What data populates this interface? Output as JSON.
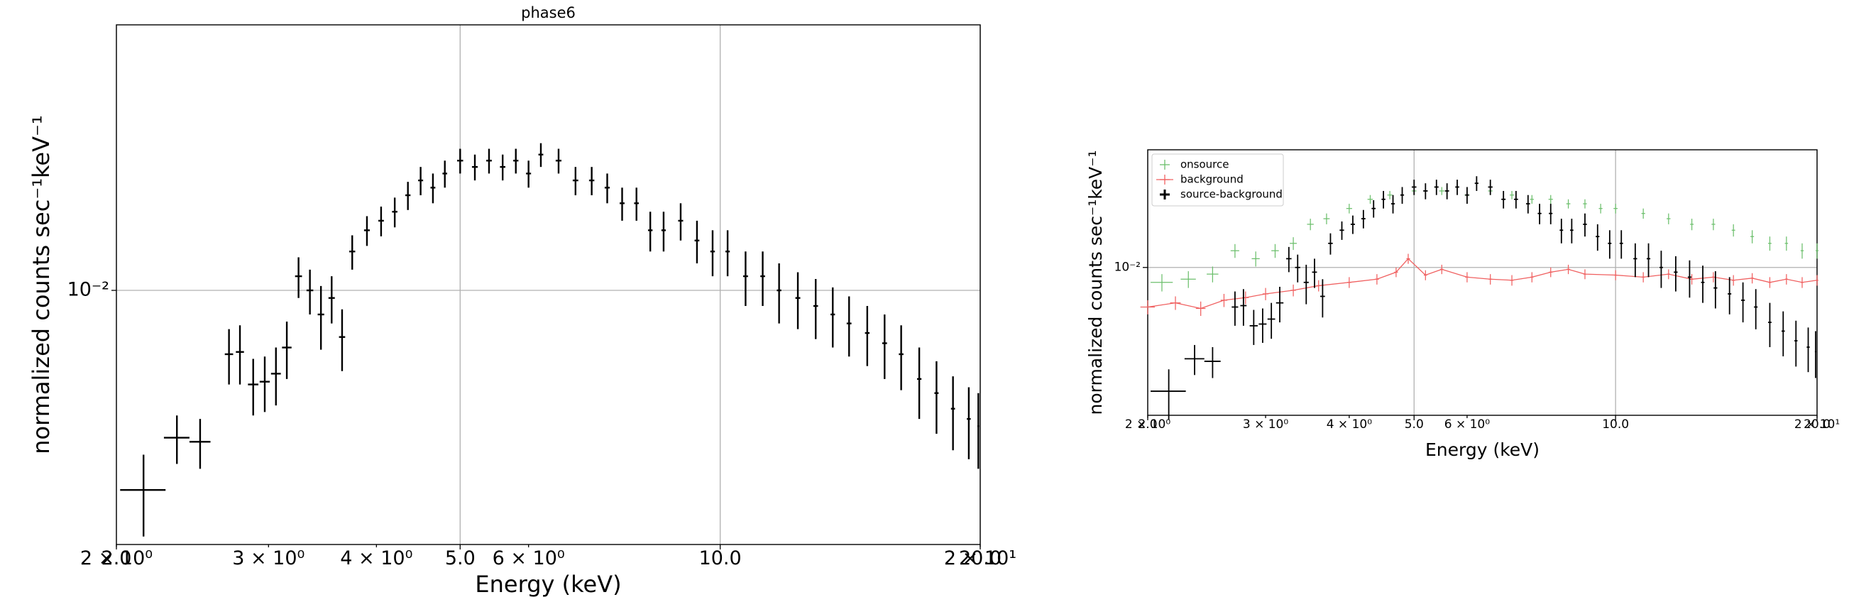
{
  "chart_data": [
    {
      "type": "errorbar",
      "title": "phase6",
      "xlabel": "Energy (keV)",
      "ylabel": "normalized counts sec⁻¹keV⁻¹",
      "xscale": "log",
      "yscale": "log",
      "grid": true,
      "color": "#000000",
      "xlim": [
        2,
        20
      ],
      "ylim": [
        0.0018,
        0.06
      ],
      "xticks": [
        {
          "value": 2,
          "label": "2.0"
        },
        {
          "value": 5,
          "label": "5.0"
        },
        {
          "value": 10,
          "label": "10.0"
        },
        {
          "value": 20,
          "label": "20.0"
        }
      ],
      "xticks_minor": [
        {
          "value": 2,
          "label": "2 × 10⁰"
        },
        {
          "value": 3,
          "label": "3 × 10⁰"
        },
        {
          "value": 4,
          "label": "4 × 10⁰"
        },
        {
          "value": 6,
          "label": "6 × 10⁰"
        },
        {
          "value": 20,
          "label": "2 × 10¹"
        }
      ],
      "yticks": [
        {
          "value": 0.01,
          "label": "10⁻²"
        }
      ],
      "x": [
        2.15,
        2.35,
        2.5,
        2.7,
        2.78,
        2.88,
        2.97,
        3.06,
        3.15,
        3.25,
        3.35,
        3.45,
        3.55,
        3.65,
        3.75,
        3.9,
        4.05,
        4.2,
        4.35,
        4.5,
        4.65,
        4.8,
        5.0,
        5.2,
        5.4,
        5.6,
        5.8,
        6.0,
        6.2,
        6.5,
        6.8,
        7.1,
        7.4,
        7.7,
        8.0,
        8.3,
        8.6,
        9.0,
        9.4,
        9.8,
        10.2,
        10.7,
        11.2,
        11.7,
        12.3,
        12.9,
        13.5,
        14.1,
        14.8,
        15.5,
        16.2,
        17,
        17.8,
        18.6,
        19.4,
        19.9
      ],
      "values": [
        0.0026,
        0.0037,
        0.0036,
        0.0065,
        0.0066,
        0.0053,
        0.0054,
        0.0057,
        0.0068,
        0.011,
        0.01,
        0.0085,
        0.0095,
        0.0073,
        0.013,
        0.015,
        0.016,
        0.017,
        0.019,
        0.021,
        0.02,
        0.022,
        0.024,
        0.023,
        0.024,
        0.023,
        0.024,
        0.022,
        0.025,
        0.024,
        0.021,
        0.021,
        0.02,
        0.018,
        0.018,
        0.015,
        0.015,
        0.016,
        0.014,
        0.013,
        0.013,
        0.011,
        0.011,
        0.01,
        0.0095,
        0.009,
        0.0085,
        0.008,
        0.0075,
        0.007,
        0.0065,
        0.0055,
        0.005,
        0.0045,
        0.0042,
        0.004
      ],
      "yerr": [
        0.0007,
        0.0006,
        0.0006,
        0.0012,
        0.0013,
        0.001,
        0.001,
        0.0011,
        0.0013,
        0.0015,
        0.0015,
        0.0018,
        0.0015,
        0.0015,
        0.0015,
        0.0015,
        0.0016,
        0.0017,
        0.0018,
        0.002,
        0.002,
        0.002,
        0.002,
        0.002,
        0.002,
        0.002,
        0.002,
        0.002,
        0.002,
        0.002,
        0.002,
        0.002,
        0.002,
        0.002,
        0.002,
        0.002,
        0.002,
        0.002,
        0.002,
        0.002,
        0.002,
        0.002,
        0.002,
        0.002,
        0.0018,
        0.0018,
        0.0017,
        0.0016,
        0.0015,
        0.0015,
        0.0014,
        0.0013,
        0.0012,
        0.0011,
        0.001,
        0.001
      ],
      "xerr": [
        0.13,
        0.08,
        0.07,
        0.03,
        0.03,
        0.04,
        0.04,
        0.04,
        0.04,
        0.03,
        0.03,
        0.03,
        0.03,
        0.03,
        0.03,
        0.03,
        0.03,
        0.03,
        0.03,
        0.03,
        0.03,
        0.03,
        0.04,
        0.04,
        0.04,
        0.04,
        0.04,
        0.04,
        0.04,
        0.05,
        0.05,
        0.05,
        0.05,
        0.05,
        0.05,
        0.05,
        0.05,
        0.06,
        0.06,
        0.06,
        0.06,
        0.07,
        0.07,
        0.07,
        0.08,
        0.08,
        0.08,
        0.09,
        0.09,
        0.1,
        0.1,
        0.1,
        0.1,
        0.1,
        0.1,
        0.05
      ]
    },
    {
      "type": "errorbar",
      "xlabel": "Energy (keV)",
      "ylabel": "normalized counts sec⁻¹keV⁻¹",
      "xscale": "log",
      "yscale": "log",
      "grid": true,
      "legend": "upper left",
      "xlim": [
        2,
        20
      ],
      "ylim": [
        0.002,
        0.036
      ],
      "xticks": [
        {
          "value": 2,
          "label": "2.0"
        },
        {
          "value": 5,
          "label": "5.0"
        },
        {
          "value": 10,
          "label": "10.0"
        },
        {
          "value": 20,
          "label": "20.0"
        }
      ],
      "xticks_minor": [
        {
          "value": 2,
          "label": "2 × 10⁰"
        },
        {
          "value": 3,
          "label": "3 × 10⁰"
        },
        {
          "value": 4,
          "label": "4 × 10⁰"
        },
        {
          "value": 6,
          "label": "6 × 10⁰"
        },
        {
          "value": 20,
          "label": "2 × 10¹"
        }
      ],
      "yticks": [
        {
          "value": 0.01,
          "label": "10⁻²"
        }
      ],
      "series": [
        {
          "name": "onsource",
          "color": "#6cbf6c",
          "linestyle": "none",
          "x": [
            2.1,
            2.3,
            2.5,
            2.7,
            2.9,
            3.1,
            3.3,
            3.5,
            3.7,
            4,
            4.3,
            4.6,
            5,
            5.5,
            6,
            6.5,
            7,
            7.5,
            8,
            8.5,
            9,
            9.5,
            10,
            11,
            12,
            13,
            14,
            15,
            16,
            17,
            18,
            19,
            20
          ],
          "values": [
            0.0085,
            0.0088,
            0.0093,
            0.012,
            0.011,
            0.012,
            0.013,
            0.016,
            0.017,
            0.019,
            0.021,
            0.022,
            0.023,
            0.023,
            0.022,
            0.023,
            0.022,
            0.021,
            0.021,
            0.02,
            0.02,
            0.019,
            0.019,
            0.018,
            0.017,
            0.016,
            0.016,
            0.015,
            0.014,
            0.013,
            0.013,
            0.012,
            0.012
          ],
          "yerr": [
            0.0008,
            0.0008,
            0.0008,
            0.0009,
            0.0009,
            0.0009,
            0.0009,
            0.001,
            0.001,
            0.001,
            0.001,
            0.001,
            0.001,
            0.001,
            0.001,
            0.001,
            0.001,
            0.001,
            0.001,
            0.001,
            0.001,
            0.001,
            0.001,
            0.001,
            0.001,
            0.001,
            0.001,
            0.001,
            0.001,
            0.001,
            0.001,
            0.001,
            0.001
          ],
          "xerr": [
            0.08,
            0.06,
            0.05,
            0.04,
            0.04,
            0.04,
            0.04,
            0.04,
            0.04,
            0.04,
            0.04,
            0.04,
            0.04,
            0.05,
            0.05,
            0.05,
            0.05,
            0.05,
            0.06,
            0.06,
            0.06,
            0.06,
            0.07,
            0.07,
            0.08,
            0.08,
            0.09,
            0.09,
            0.1,
            0.1,
            0.1,
            0.1,
            0.1
          ]
        },
        {
          "name": "background",
          "color": "#f06060",
          "linestyle": "solid",
          "x": [
            2.0,
            2.2,
            2.4,
            2.6,
            2.8,
            3.0,
            3.3,
            3.6,
            4,
            4.4,
            4.7,
            4.9,
            5.2,
            5.5,
            6,
            6.5,
            7,
            7.5,
            8,
            8.5,
            9,
            10,
            11,
            12,
            13,
            14,
            15,
            16,
            17,
            18,
            19,
            20
          ],
          "values": [
            0.0065,
            0.0068,
            0.0064,
            0.007,
            0.0072,
            0.0075,
            0.0078,
            0.0082,
            0.0085,
            0.0088,
            0.0095,
            0.011,
            0.0092,
            0.0098,
            0.009,
            0.0088,
            0.0087,
            0.009,
            0.0095,
            0.0098,
            0.0093,
            0.0092,
            0.009,
            0.0093,
            0.0088,
            0.009,
            0.0087,
            0.0089,
            0.0085,
            0.0088,
            0.0085,
            0.0087
          ],
          "yerr": [
            0.0005,
            0.0005,
            0.0005,
            0.0005,
            0.0005,
            0.0005,
            0.0005,
            0.0005,
            0.0005,
            0.0005,
            0.0005,
            0.0006,
            0.0005,
            0.0005,
            0.0005,
            0.0005,
            0.0005,
            0.0005,
            0.0005,
            0.0005,
            0.0005,
            0.0005,
            0.0005,
            0.0005,
            0.0005,
            0.0005,
            0.0005,
            0.0005,
            0.0005,
            0.0005,
            0.0005,
            0.0005
          ],
          "xerr": [
            0.05,
            0.04,
            0.04,
            0.03,
            0.03,
            0.03,
            0.03,
            0.03,
            0.03,
            0.03,
            0.03,
            0.03,
            0.03,
            0.03,
            0.04,
            0.04,
            0.04,
            0.04,
            0.05,
            0.05,
            0.05,
            0.05,
            0.06,
            0.06,
            0.07,
            0.07,
            0.08,
            0.08,
            0.08,
            0.09,
            0.09,
            0.09
          ]
        },
        {
          "name": "source-background",
          "color": "#000000",
          "linestyle": "none",
          "x": [
            2.15,
            2.35,
            2.5,
            2.7,
            2.78,
            2.88,
            2.97,
            3.06,
            3.15,
            3.25,
            3.35,
            3.45,
            3.55,
            3.65,
            3.75,
            3.9,
            4.05,
            4.2,
            4.35,
            4.5,
            4.65,
            4.8,
            5.0,
            5.2,
            5.4,
            5.6,
            5.8,
            6.0,
            6.2,
            6.5,
            6.8,
            7.1,
            7.4,
            7.7,
            8.0,
            8.3,
            8.6,
            9.0,
            9.4,
            9.8,
            10.2,
            10.7,
            11.2,
            11.7,
            12.3,
            12.9,
            13.5,
            14.1,
            14.8,
            15.5,
            16.2,
            17,
            17.8,
            18.6,
            19.4,
            19.9
          ],
          "values": [
            0.0026,
            0.0037,
            0.0036,
            0.0065,
            0.0066,
            0.0053,
            0.0054,
            0.0057,
            0.0068,
            0.011,
            0.01,
            0.0085,
            0.0095,
            0.0073,
            0.013,
            0.015,
            0.016,
            0.017,
            0.019,
            0.021,
            0.02,
            0.022,
            0.024,
            0.023,
            0.024,
            0.023,
            0.024,
            0.022,
            0.025,
            0.024,
            0.021,
            0.021,
            0.02,
            0.018,
            0.018,
            0.015,
            0.015,
            0.016,
            0.014,
            0.013,
            0.013,
            0.011,
            0.011,
            0.01,
            0.0095,
            0.009,
            0.0085,
            0.008,
            0.0075,
            0.007,
            0.0065,
            0.0055,
            0.005,
            0.0045,
            0.0042,
            0.004
          ],
          "yerr": [
            0.0007,
            0.0006,
            0.0006,
            0.0012,
            0.0013,
            0.001,
            0.001,
            0.0011,
            0.0013,
            0.0015,
            0.0015,
            0.0018,
            0.0015,
            0.0015,
            0.0015,
            0.0015,
            0.0016,
            0.0017,
            0.0018,
            0.002,
            0.002,
            0.002,
            0.002,
            0.002,
            0.002,
            0.002,
            0.002,
            0.002,
            0.002,
            0.002,
            0.002,
            0.002,
            0.002,
            0.002,
            0.002,
            0.002,
            0.002,
            0.002,
            0.002,
            0.002,
            0.002,
            0.002,
            0.002,
            0.002,
            0.0018,
            0.0018,
            0.0017,
            0.0016,
            0.0015,
            0.0015,
            0.0014,
            0.0013,
            0.0012,
            0.0011,
            0.001,
            0.001
          ],
          "xerr": [
            0.13,
            0.08,
            0.07,
            0.03,
            0.03,
            0.04,
            0.04,
            0.04,
            0.04,
            0.03,
            0.03,
            0.03,
            0.03,
            0.03,
            0.03,
            0.03,
            0.03,
            0.03,
            0.03,
            0.03,
            0.03,
            0.03,
            0.04,
            0.04,
            0.04,
            0.04,
            0.04,
            0.04,
            0.04,
            0.05,
            0.05,
            0.05,
            0.05,
            0.05,
            0.05,
            0.05,
            0.05,
            0.06,
            0.06,
            0.06,
            0.06,
            0.07,
            0.07,
            0.07,
            0.08,
            0.08,
            0.08,
            0.09,
            0.09,
            0.1,
            0.1,
            0.1,
            0.1,
            0.1,
            0.1,
            0.05
          ]
        }
      ]
    }
  ]
}
